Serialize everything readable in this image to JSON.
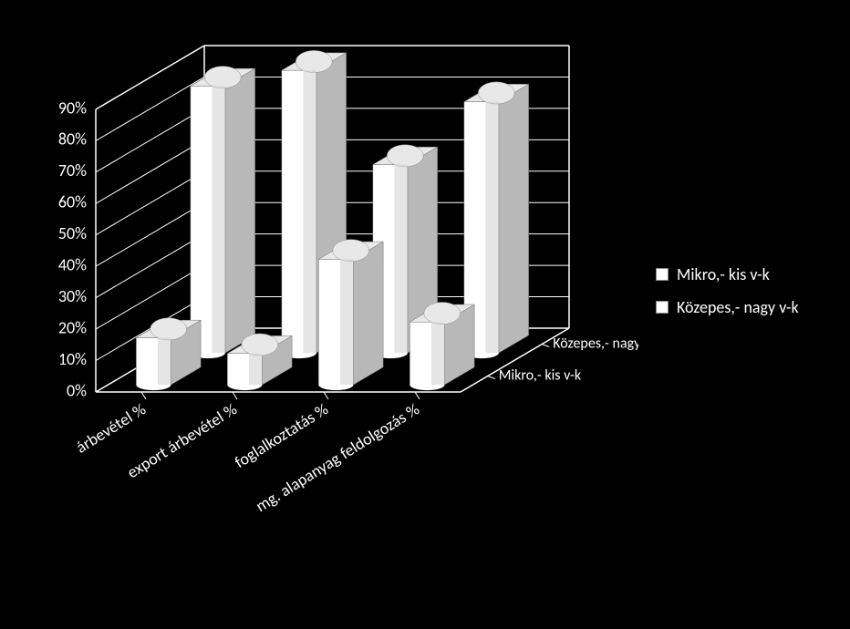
{
  "chart": {
    "type": "bar-3d",
    "background_color": "#000000",
    "bar_fill": "#ffffff",
    "bar_side_shade": "#b8b8b8",
    "bar_top_shade": "#e8e8e8",
    "grid_color": "#ffffff",
    "floor_fill": "#000000",
    "wall_fill": "#000000",
    "text_color": "#ffffff",
    "tick_fontsize": 18,
    "label_fontsize": 18,
    "legend_fontsize": 18,
    "yaxis": {
      "min": 0,
      "max": 90,
      "step": 10,
      "suffix": "%"
    },
    "categories": [
      "árbevétel %",
      "export árbevétel %",
      "foglalkoztatás %",
      "mg. alapanyag feldolgozás %"
    ],
    "series": [
      {
        "name": "Mikro,- kis v-k",
        "values": [
          15,
          10,
          40,
          20
        ]
      },
      {
        "name": "Közepes,- nagy v-k",
        "values": [
          85,
          90,
          60,
          80
        ]
      }
    ],
    "depth_labels": [
      "Mikro,- kis v-k",
      "Közepes,- nagy v-k"
    ],
    "legend_items": [
      "Mikro,- kis v-k",
      "Közepes,- nagy v-k"
    ]
  }
}
